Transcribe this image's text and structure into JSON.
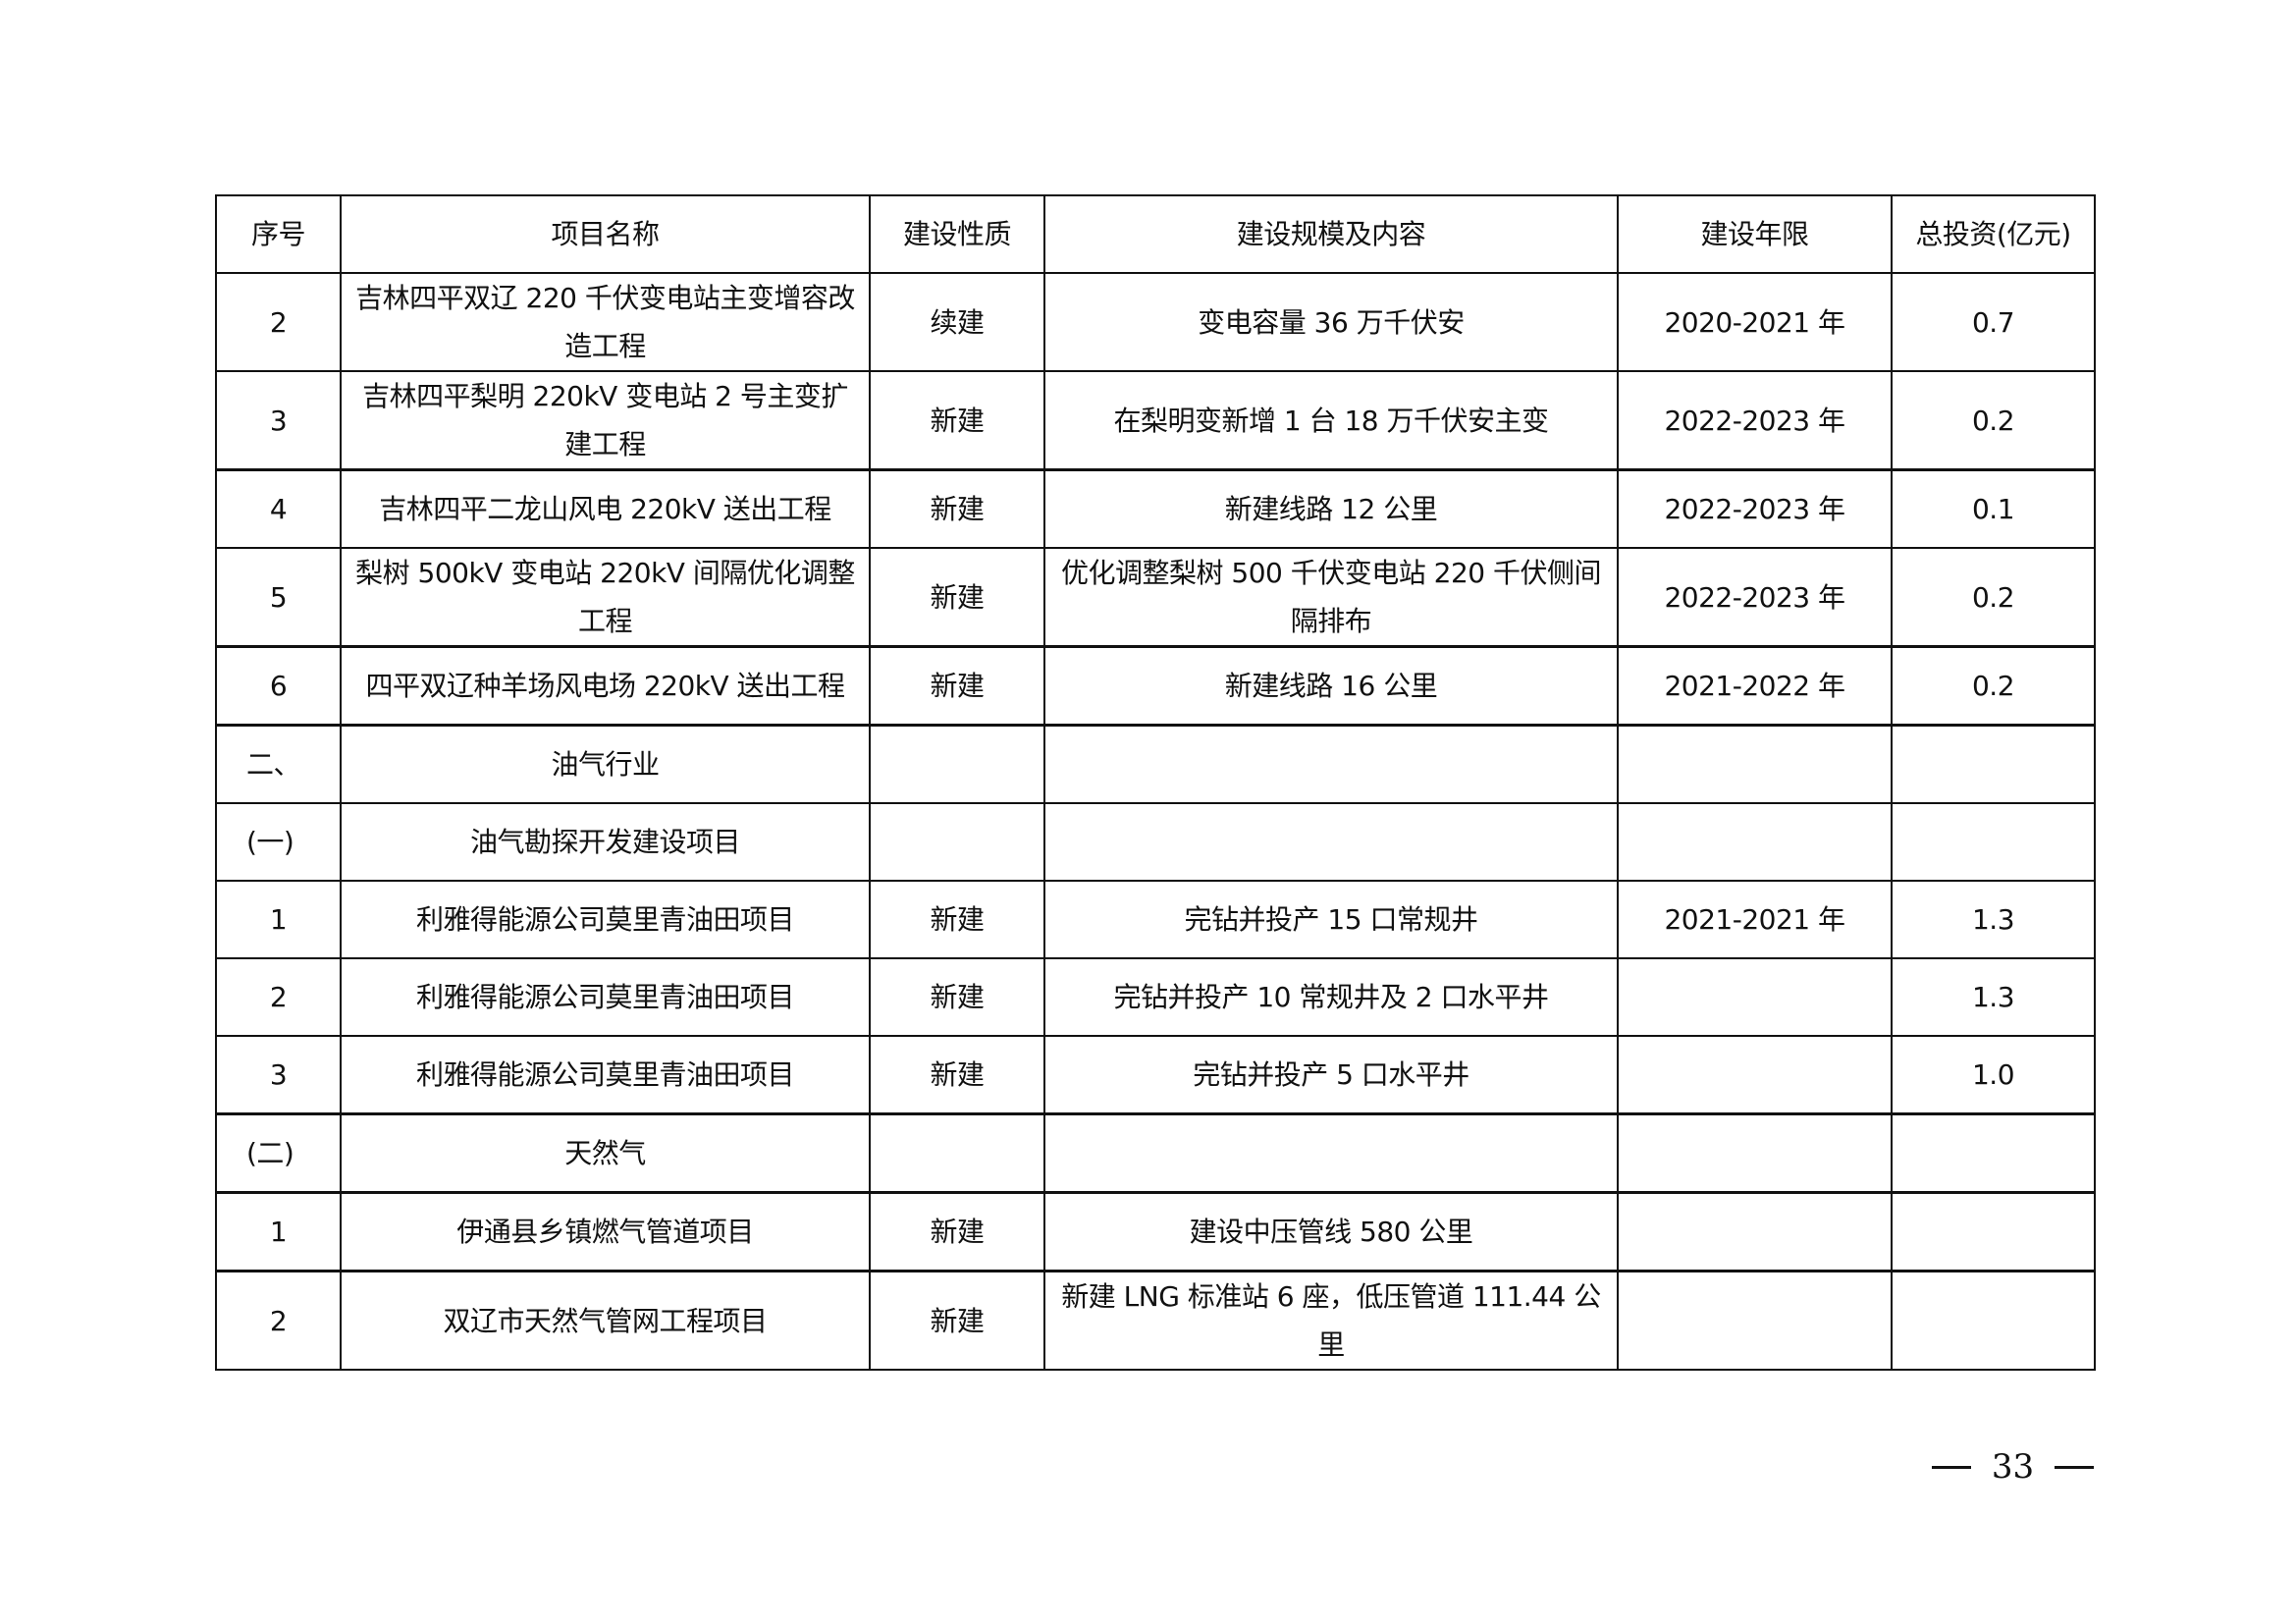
{
  "table": {
    "headers": [
      "序号",
      "项目名称",
      "建设性质",
      "建设规模及内容",
      "建设年限",
      "总投资(亿元)"
    ],
    "rows": [
      [
        "2",
        "吉林四平双辽 220 千伏变电站主变增容改造工程",
        "续建",
        "变电容量 36 万千伏安",
        "2020-2021 年",
        "0.7"
      ],
      [
        "3",
        "吉林四平梨明 220kV 变电站 2 号主变扩建工程",
        "新建",
        "在梨明变新增 1 台 18 万千伏安主变",
        "2022-2023 年",
        "0.2"
      ],
      [
        "4",
        "吉林四平二龙山风电 220kV 送出工程",
        "新建",
        "新建线路 12 公里",
        "2022-2023 年",
        "0.1"
      ],
      [
        "5",
        "梨树 500kV 变电站 220kV 间隔优化调整工程",
        "新建",
        "优化调整梨树 500 千伏变电站 220 千伏侧间隔排布",
        "2022-2023 年",
        "0.2"
      ],
      [
        "6",
        "四平双辽种羊场风电场 220kV 送出工程",
        "新建",
        "新建线路 16 公里",
        "2021-2022 年",
        "0.2"
      ],
      [
        "二、",
        "油气行业",
        "",
        "",
        "",
        ""
      ],
      [
        "(一)",
        "油气勘探开发建设项目",
        "",
        "",
        "",
        ""
      ],
      [
        "1",
        "利雅得能源公司莫里青油田项目",
        "新建",
        "完钻并投产 15 口常规井",
        "2021-2021 年",
        "1.3"
      ],
      [
        "2",
        "利雅得能源公司莫里青油田项目",
        "新建",
        "完钻并投产 10 常规井及 2 口水平井",
        "",
        "1.3"
      ],
      [
        "3",
        "利雅得能源公司莫里青油田项目",
        "新建",
        "完钻并投产 5 口水平井",
        "",
        "1.0"
      ],
      [
        "(二)",
        "天然气",
        "",
        "",
        "",
        ""
      ],
      [
        "1",
        "伊通县乡镇燃气管道项目",
        "新建",
        "建设中压管线 580 公里",
        "",
        ""
      ],
      [
        "2",
        "双辽市天然气管网工程项目",
        "新建",
        "新建 LNG 标准站 6 座，低压管道 111.44 公里",
        "",
        ""
      ]
    ]
  },
  "footer": {
    "page_number": "33"
  }
}
